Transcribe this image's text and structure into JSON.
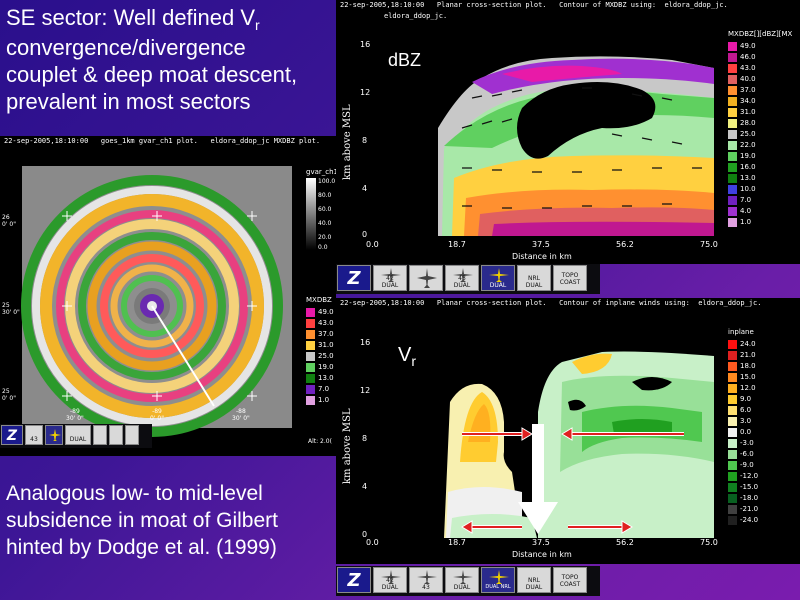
{
  "slide": {
    "caption_top": {
      "line1_pre": "SE sector: Well defined V",
      "line1_sub": "r",
      "line2": "convergence/divergence",
      "line3": "couplet & deep moat descent,",
      "line4": "prevalent in most sectors"
    },
    "caption_bottom": {
      "line1": "Analogous low- to mid-level",
      "line2": "subsidence in moat of Gilbert",
      "line3": "hinted by Dodge et al. (1999)"
    },
    "colors": {
      "background": "#3d1696",
      "text": "#ffffff"
    }
  },
  "ppi_window": {
    "title": "22-sep-2005,18:10:00   goes_1km gvar_ch1 plot.   eldora_ddop_jc MXDBZ plot.",
    "gvar_legend": {
      "title": "gvar_ch1",
      "values": [
        "100.0",
        "80.0",
        "60.0",
        "40.0",
        "20.0",
        "0.0"
      ]
    },
    "dbz_legend": {
      "title": "MXDBZ",
      "values": [
        "49.0",
        "43.0",
        "37.0",
        "31.0",
        "25.0",
        "19.0",
        "13.0",
        "7.0",
        "1.0"
      ]
    },
    "lat_labels": [
      "26\n0' 0\"",
      "25\n30' 0\"",
      "25\n0' 0\""
    ],
    "lon_labels": [
      "-89\n30' 0\"",
      "-89\n0' 0\"",
      "-88\n30' 0\""
    ],
    "alt_text": "Alt: 2.0(",
    "toolbar": [
      "Z",
      "43",
      "",
      "DUAL",
      "",
      "",
      ""
    ]
  },
  "dbz_window": {
    "title_line1": "22-sep-2005,18:10:00   Planar cross-section plot.   Contour of MXDBZ using:  eldora_ddop_jc.",
    "title_line2": "eldora_ddop_jc.",
    "panel_label": "dBZ",
    "ylabel": "km above MSL",
    "xlabel": "Distance in km",
    "y_ticks": [
      "16",
      "12",
      "8",
      "4",
      "0"
    ],
    "x_ticks": [
      "0.0",
      "18.7",
      "37.5",
      "56.2",
      "75.0"
    ],
    "legend": {
      "title": "MXDBZ[][dBZ][MX",
      "values": [
        "49.0",
        "46.0",
        "43.0",
        "40.0",
        "37.0",
        "34.0",
        "31.0",
        "28.0",
        "25.0",
        "22.0",
        "19.0",
        "16.0",
        "13.0",
        "10.0",
        "7.0",
        "4.0",
        "1.0"
      ]
    },
    "toolbar": [
      {
        "label": "Z"
      },
      {
        "label": "42\nDUAL"
      },
      {
        "label": ""
      },
      {
        "label": "43\nDUAL"
      },
      {
        "label": "DUAL"
      },
      {
        "label": "NRL\nDUAL"
      },
      {
        "label": "TOPO\nCOAST"
      }
    ]
  },
  "vr_window": {
    "title_line1": "22-sep-2005,18:10:00   Planar cross-section plot.   Contour of inplane winds using:  eldora_ddop_jc.",
    "panel_label_pre": "V",
    "panel_label_sub": "r",
    "ylabel": "km above MSL",
    "xlabel": "Distance in km",
    "y_ticks": [
      "16",
      "12",
      "8",
      "4",
      "0"
    ],
    "x_ticks": [
      "0.0",
      "18.7",
      "37.5",
      "56.2",
      "75.0"
    ],
    "legend": {
      "title": "inplane",
      "values": [
        "24.0",
        "21.0",
        "18.0",
        "15.0",
        "12.0",
        "9.0",
        "6.0",
        "3.0",
        "0.0",
        "-3.0",
        "-6.0",
        "-9.0",
        "-12.0",
        "-15.0",
        "-18.0",
        "-21.0",
        "-24.0"
      ]
    },
    "toolbar": [
      {
        "label": "Z"
      },
      {
        "label": "42\nDUAL"
      },
      {
        "label": "43"
      },
      {
        "label": "DUAL"
      },
      {
        "label": "DUAL  NRL"
      },
      {
        "label": "NRL\nDUAL"
      },
      {
        "label": "TOPO\nCOAST"
      }
    ]
  },
  "legend_colors": {
    "dbz": [
      "#e81aa8",
      "#c01890",
      "#ff4040",
      "#e06060",
      "#ff9030",
      "#f0b020",
      "#ffd040",
      "#f0f080",
      "#c8c8c8",
      "#a8e8a8",
      "#60d060",
      "#20a020",
      "#108010",
      "#4040e0",
      "#7020c0",
      "#a030d0",
      "#e0a0e0"
    ],
    "vr": [
      "#ff1010",
      "#e02020",
      "#ff5a20",
      "#ff8a20",
      "#ffb020",
      "#ffcc30",
      "#ffe070",
      "#f8f0b0",
      "#f0f0f0",
      "#c8f0c8",
      "#98e098",
      "#50c850",
      "#20a020",
      "#108020",
      "#086020",
      "#404040",
      "#202020"
    ]
  }
}
